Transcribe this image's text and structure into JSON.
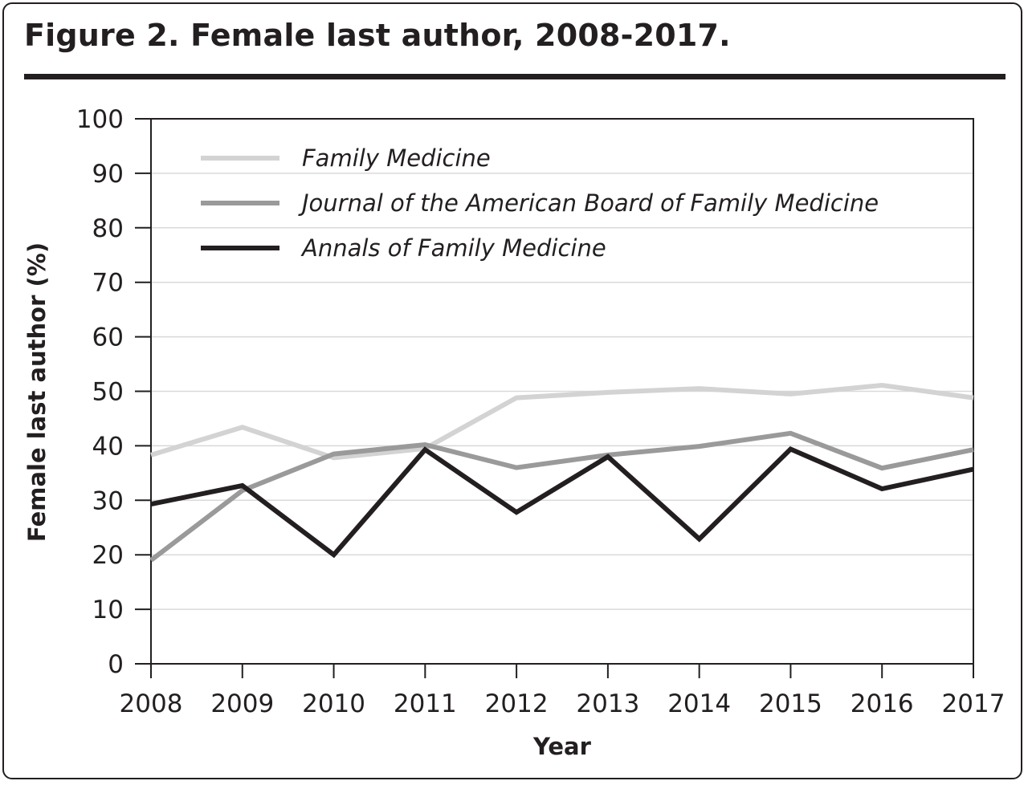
{
  "figure_title": "Figure 2. Female last author, 2008-2017.",
  "chart_data": {
    "type": "line",
    "title": "Figure 2. Female last author, 2008-2017.",
    "xlabel": "Year",
    "ylabel": "Female last author (%)",
    "x": [
      "2008",
      "2009",
      "2010",
      "2011",
      "2012",
      "2013",
      "2014",
      "2015",
      "2016",
      "2017"
    ],
    "y_ticks": [
      "0",
      "10",
      "20",
      "30",
      "40",
      "50",
      "60",
      "70",
      "80",
      "90",
      "100"
    ],
    "ylim": [
      0,
      100
    ],
    "grid": "horizontal",
    "legend_position": "top-left",
    "series": [
      {
        "name": "Family Medicine",
        "color": "#d3d3d3",
        "values": [
          38.3,
          43.4,
          37.8,
          39.5,
          48.8,
          49.8,
          50.5,
          49.5,
          51.1,
          48.8
        ]
      },
      {
        "name": "Journal of the American Board of Family Medicine",
        "color": "#9a9a9a",
        "values": [
          19.0,
          31.8,
          38.5,
          40.2,
          36.0,
          38.3,
          39.9,
          42.3,
          35.9,
          39.3
        ]
      },
      {
        "name": "Annals of Family Medicine",
        "color": "#231f20",
        "values": [
          29.3,
          32.7,
          20.0,
          39.3,
          27.8,
          38.0,
          22.9,
          39.4,
          32.1,
          35.7
        ]
      }
    ]
  }
}
